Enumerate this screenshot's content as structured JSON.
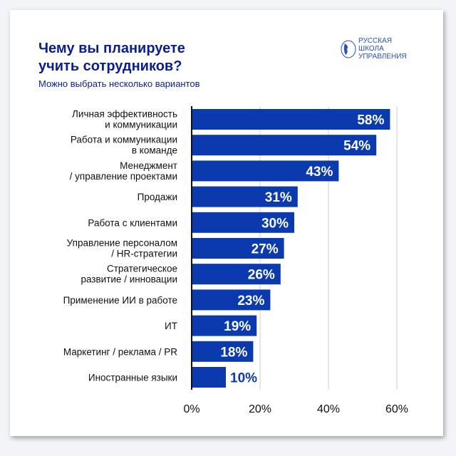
{
  "chart_data": {
    "type": "bar",
    "orientation": "horizontal",
    "title": "Чему вы планируете учить сотрудников?",
    "title_lines": [
      "Чему вы планируете",
      "учить сотрудников?"
    ],
    "subtitle": "Можно выбрать несколько вариантов",
    "categories": [
      [
        "Личная эффективность",
        "и коммуникации"
      ],
      [
        "Работа и коммуникации",
        "в команде"
      ],
      [
        "Менеджмент",
        "/ управление проектами"
      ],
      [
        "Продажи"
      ],
      [
        "Работа с клиентами"
      ],
      [
        "Управление персоналом",
        "/ HR-стратегии"
      ],
      [
        "Стратегическое",
        "развитие / инновации"
      ],
      [
        "Применение ИИ в работе"
      ],
      [
        "ИТ"
      ],
      [
        "Маркетинг / реклама / PR"
      ],
      [
        "Иностранные языки"
      ]
    ],
    "values": [
      58,
      54,
      43,
      31,
      30,
      27,
      26,
      23,
      19,
      18,
      10
    ],
    "data_labels": [
      "58%",
      "54%",
      "43%",
      "31%",
      "30%",
      "27%",
      "26%",
      "23%",
      "19%",
      "18%",
      "10%"
    ],
    "x_ticks": [
      "0%",
      "20%",
      "40%",
      "60%"
    ],
    "xlim": [
      0,
      60
    ],
    "grid": true,
    "bar_color": "#0b3aae",
    "title_color": "#0a1e8c"
  },
  "logo": {
    "lines": [
      "РУССКАЯ",
      "ШКОЛА",
      "УПРАВЛЕНИЯ"
    ]
  }
}
